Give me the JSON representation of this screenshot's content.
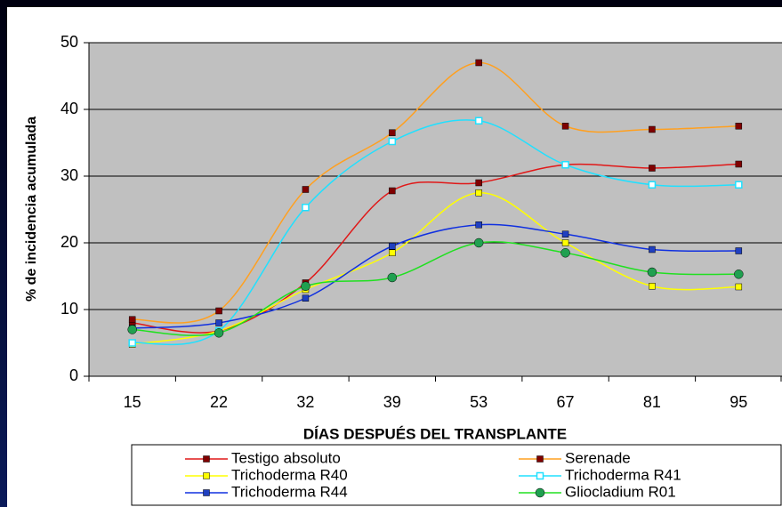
{
  "chart_data": {
    "type": "line",
    "y_label": "% de incidencia acumulada",
    "x_label": "DÍAS DESPUÉS DEL TRANSPLANTE",
    "categories": [
      "15",
      "22",
      "32",
      "39",
      "53",
      "67",
      "81",
      "95"
    ],
    "ylim": [
      0,
      50
    ],
    "yticks": [
      0,
      10,
      20,
      30,
      40,
      50
    ],
    "grid": true,
    "series": [
      {
        "name": "Testigo absoluto",
        "color": "#e01818",
        "marker": "square",
        "marker_color": "#800000",
        "values": [
          8,
          6.8,
          14,
          27.8,
          29,
          31.7,
          31.2,
          31.8
        ]
      },
      {
        "name": "Serenade",
        "color": "#ffa020",
        "marker": "square",
        "marker_color": "#800000",
        "values": [
          8.5,
          9.8,
          28,
          36.5,
          47,
          37.5,
          37,
          37.5
        ]
      },
      {
        "name": "Trichoderma  R40",
        "color": "#ffff00",
        "marker": "square",
        "marker_color": "#ffff00",
        "values": [
          4.8,
          6.8,
          13,
          18.5,
          27.5,
          20,
          13.5,
          13.4
        ]
      },
      {
        "name": "Trichoderma  R41",
        "color": "#20e0ff",
        "marker": "hollow-square",
        "marker_color": "#20e0ff",
        "values": [
          5,
          6.8,
          25.3,
          35.2,
          38.3,
          31.7,
          28.7,
          28.7
        ]
      },
      {
        "name": "Trichoderma R44",
        "color": "#1030e0",
        "marker": "square",
        "marker_color": "#2040c0",
        "values": [
          7.2,
          8,
          11.7,
          19.5,
          22.7,
          21.3,
          19,
          18.8
        ]
      },
      {
        "name": "Gliocladium R01",
        "color": "#20e020",
        "marker": "circle",
        "marker_color": "#20a050",
        "values": [
          7,
          6.5,
          13.5,
          14.8,
          20,
          18.5,
          15.6,
          15.3
        ]
      }
    ]
  }
}
